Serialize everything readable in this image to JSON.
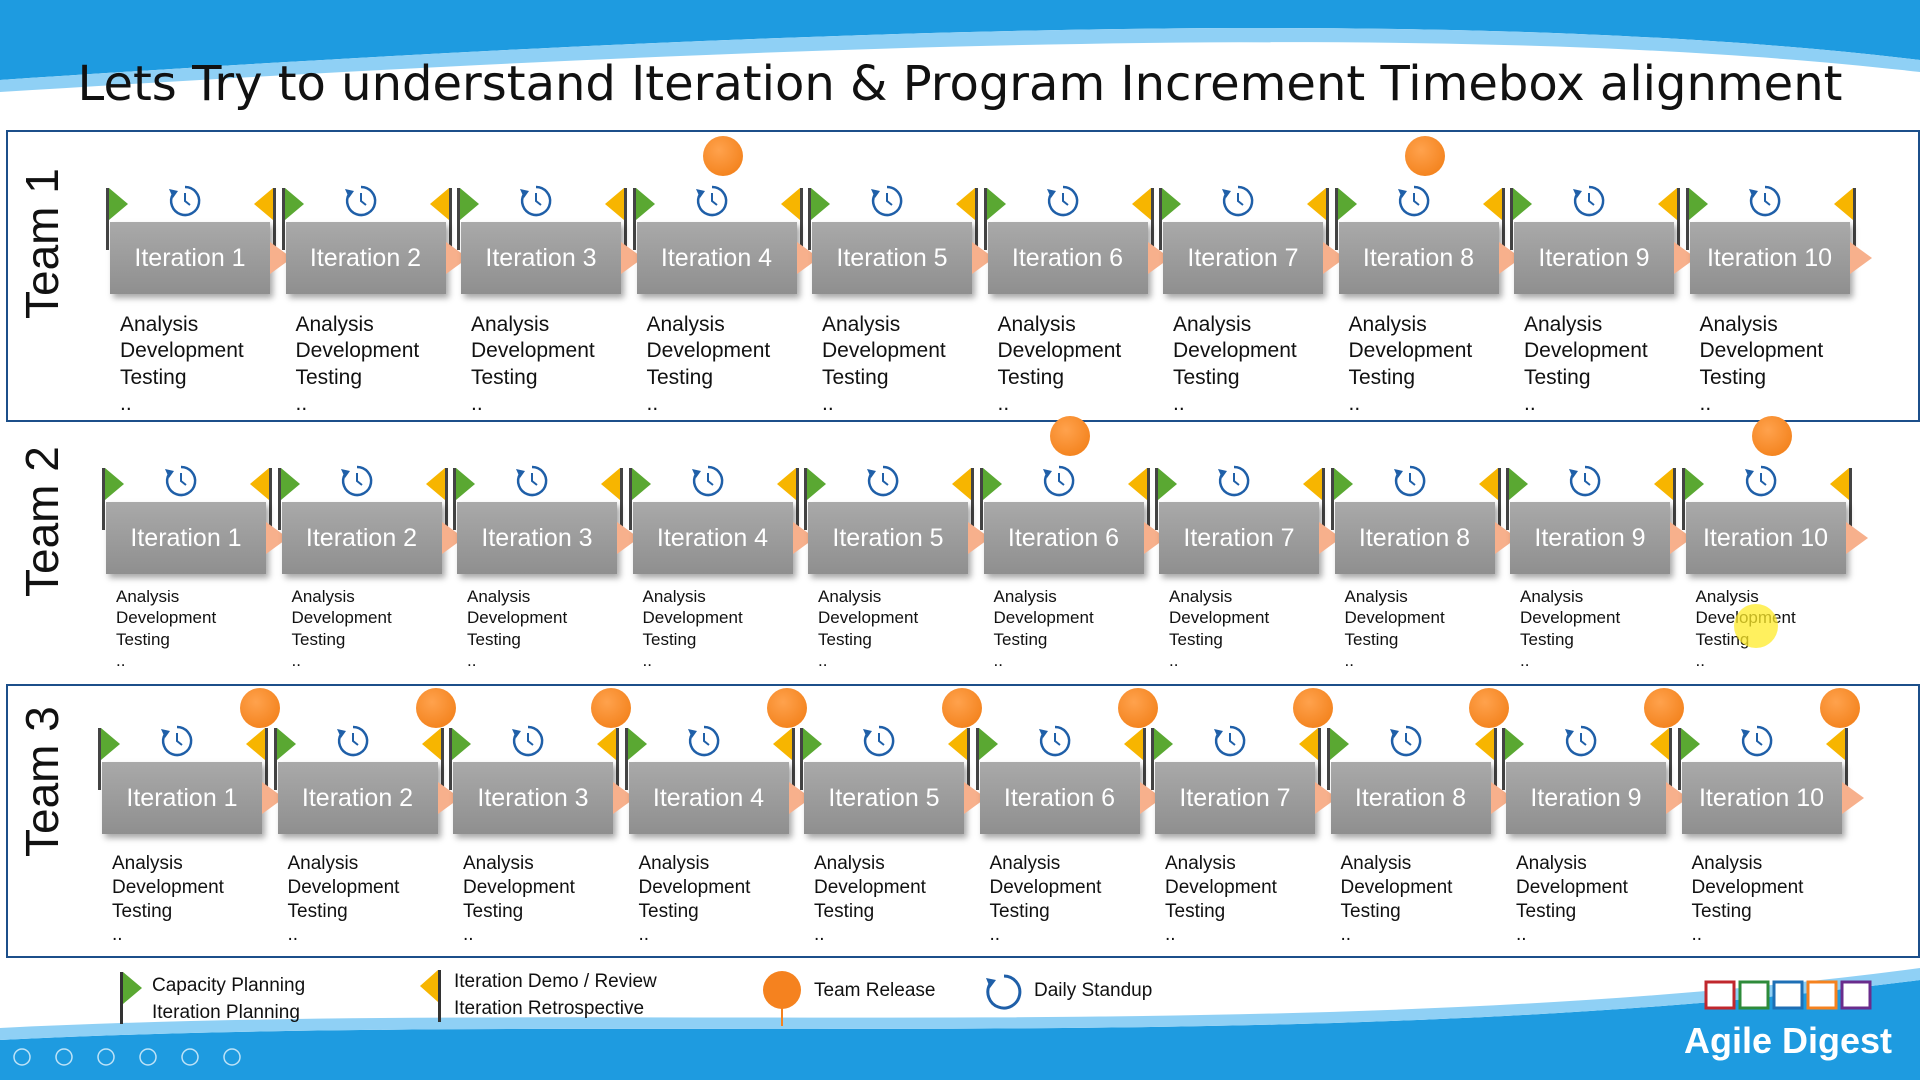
{
  "title": "Lets Try to understand Iteration & Program Increment Timebox alignment",
  "iteration_labels": [
    "Iteration 1",
    "Iteration 2",
    "Iteration 3",
    "Iteration 4",
    "Iteration 5",
    "Iteration 6",
    "Iteration 7",
    "Iteration 8",
    "Iteration 9",
    "Iteration 10"
  ],
  "activities": [
    "Analysis",
    "Development",
    "Testing",
    ".."
  ],
  "teams": [
    {
      "name": "Team 1",
      "releases_after_iterations": [
        4,
        8
      ]
    },
    {
      "name": "Team 2",
      "releases_after_iterations": [
        6,
        10
      ]
    },
    {
      "name": "Team 3",
      "releases_after_iterations": [
        1,
        2,
        3,
        4,
        5,
        6,
        7,
        8,
        9,
        10
      ]
    }
  ],
  "legend": {
    "capacity": {
      "line1": "Capacity Planning",
      "line2": "Iteration Planning"
    },
    "demo": {
      "line1": "Iteration Demo / Review",
      "line2": "Iteration Retrospective"
    },
    "release": "Team Release",
    "standup": "Daily Standup"
  },
  "brand": "Agile Digest",
  "colors": {
    "band_blue": "#1e9be0",
    "iteration_box": "#9a9a9a",
    "green_flag": "#5aa832",
    "yellow_flag": "#f7b500",
    "release": "#f5821f",
    "arrow": "#f7b08c",
    "standup_icon": "#1f5fa8"
  },
  "icons": {
    "capacity": "green-flag-icon",
    "demo": "yellow-flag-icon",
    "release": "orange-circle-icon",
    "standup": "circular-arrow-icon"
  }
}
